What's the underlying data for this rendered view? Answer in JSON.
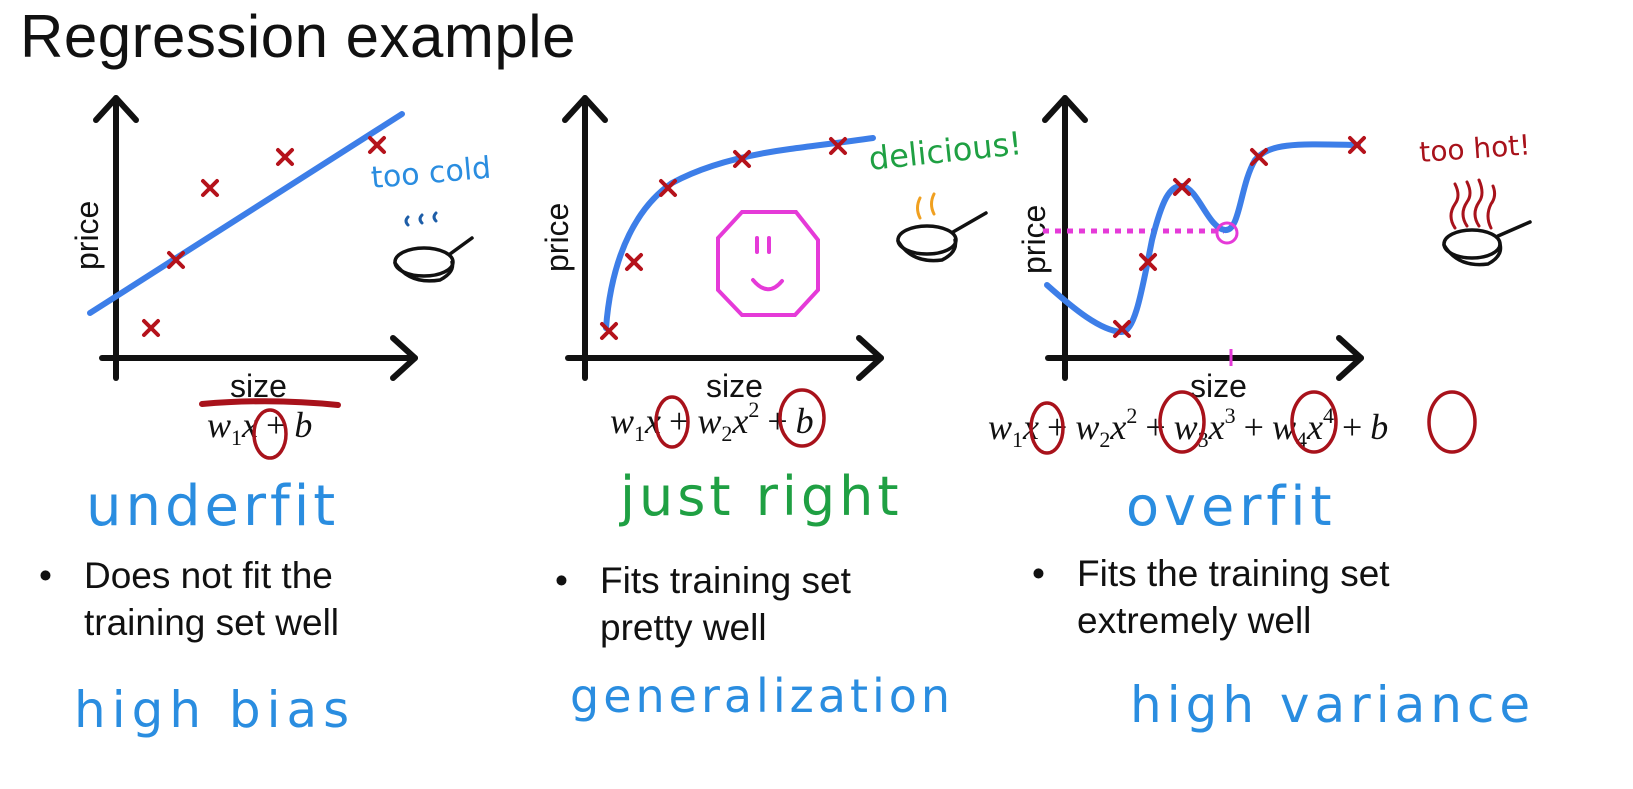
{
  "title": "Regression example",
  "axes": {
    "x_label": "size",
    "y_label": "price"
  },
  "panels": [
    {
      "formula": [
        "w",
        "1",
        "x",
        "+",
        "b"
      ],
      "handwritten_label": "underfit",
      "annotation": "too cold",
      "bullet_lines": [
        "Does not fit the",
        "training set well"
      ],
      "footer": "high bias"
    },
    {
      "formula": [
        "w",
        "1",
        "x",
        "+",
        "w",
        "2",
        "x",
        "2",
        "+",
        "b"
      ],
      "handwritten_label": "just right",
      "annotation": "delicious!",
      "bullet_lines": [
        "Fits training set",
        "pretty well"
      ],
      "footer": "generalization"
    },
    {
      "formula": [
        "w",
        "1",
        "x",
        "+",
        "w",
        "2",
        "x",
        "2",
        "+",
        "w",
        "3",
        "x",
        "3",
        "+",
        "w",
        "4",
        "x",
        "4",
        "+",
        "b"
      ],
      "handwritten_label": "overfit",
      "annotation": "too hot!",
      "bullet_lines": [
        "Fits the training set",
        "extremely well"
      ],
      "footer": "high variance"
    }
  ],
  "bullet_symbol": "•",
  "colors": {
    "curve": "#3d7ee8",
    "marker": "#b5121b",
    "blue_note": "#2a8de0",
    "green_note": "#1fa043",
    "red_note": "#a8121b",
    "smile": "#e53ad8",
    "steam_orange": "#f0a020"
  }
}
